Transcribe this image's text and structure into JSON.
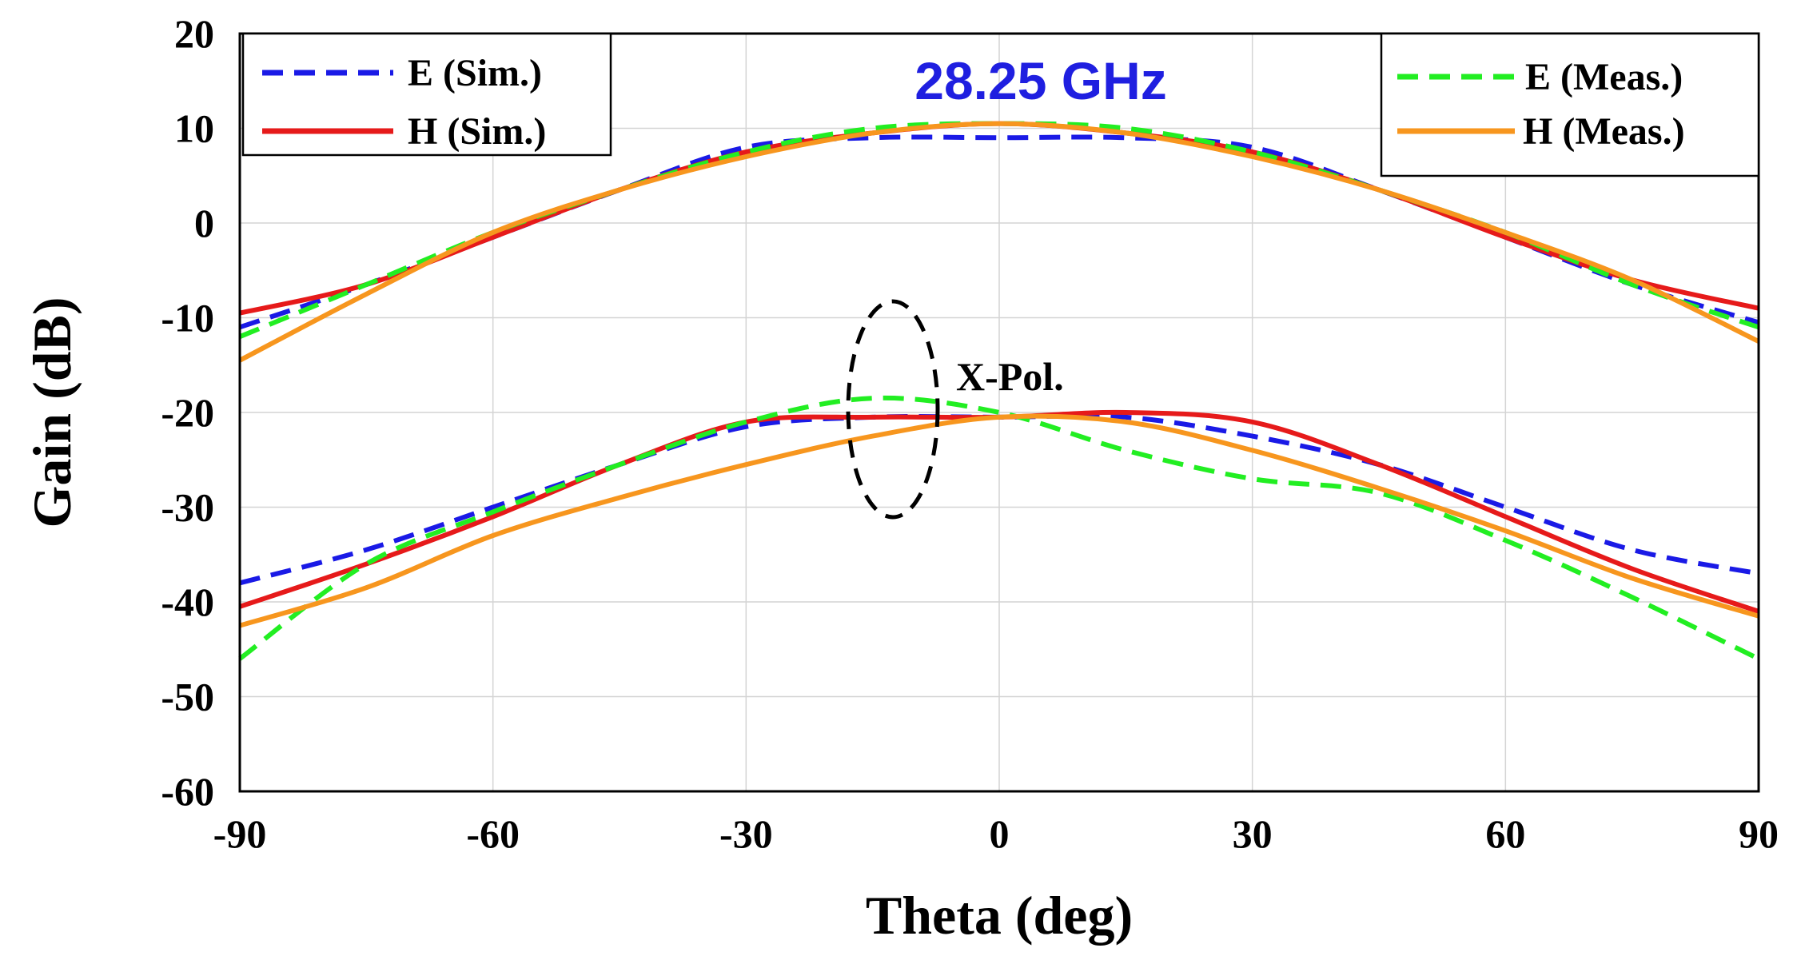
{
  "chart_data": {
    "type": "line",
    "title": "",
    "xlabel": "Theta (deg)",
    "ylabel": "Gain (dB)",
    "xlim": [
      -90,
      90
    ],
    "ylim": [
      -60,
      20
    ],
    "xticks": [
      -90,
      -60,
      -30,
      0,
      30,
      60,
      90
    ],
    "yticks": [
      -60,
      -50,
      -40,
      -30,
      -20,
      -10,
      0,
      10,
      20
    ],
    "xtick_labels": [
      "-90",
      "-60",
      "-30",
      "0",
      "30",
      "60",
      "90"
    ],
    "ytick_labels": [
      "-60",
      "-50",
      "-40",
      "-30",
      "-20",
      "-10",
      "0",
      "10",
      "20"
    ],
    "grid": true,
    "frequency_label": "28.25 GHz",
    "frequency_color": "#1f1fe0",
    "annotation": "X-Pol.",
    "legend_left": [
      "E (Sim.)",
      "H (Sim.)"
    ],
    "legend_right": [
      "E (Meas.)",
      "H (Meas.)"
    ],
    "x": [
      -90,
      -75,
      -60,
      -45,
      -30,
      -15,
      0,
      15,
      30,
      45,
      60,
      75,
      90
    ],
    "series": [
      {
        "name": "E (Sim.)",
        "group": "co-pol",
        "color": "#1a1ae6",
        "dash": "dashed",
        "values": [
          -11,
          -6.5,
          -1.5,
          3.5,
          8,
          9,
          9,
          9,
          8,
          3.5,
          -1.5,
          -6.5,
          -10.5
        ]
      },
      {
        "name": "H (Sim.)",
        "group": "co-pol",
        "color": "#e61a1a",
        "dash": "solid",
        "values": [
          -9.5,
          -6.5,
          -1.5,
          3.5,
          7.5,
          9.5,
          10.5,
          9.5,
          7.5,
          3.5,
          -1.5,
          -6,
          -9
        ]
      },
      {
        "name": "E (Meas.)",
        "group": "co-pol",
        "color": "#22ee22",
        "dash": "dashed",
        "values": [
          -12,
          -6.5,
          -1,
          3.5,
          7.5,
          10,
          10.5,
          10,
          7.5,
          3.5,
          -1,
          -6.5,
          -11
        ]
      },
      {
        "name": "H (Meas.)",
        "group": "co-pol",
        "color": "#f7961e",
        "dash": "solid",
        "values": [
          -14.5,
          -7.5,
          -1,
          3.5,
          7,
          9.5,
          10.5,
          9.5,
          7,
          3.5,
          -1,
          -6,
          -12.5
        ]
      },
      {
        "name": "E (Sim.)",
        "group": "x-pol",
        "color": "#1a1ae6",
        "dash": "dashed",
        "values": [
          -38,
          -34.5,
          -30,
          -25.5,
          -21.5,
          -20.5,
          -20.5,
          -20.5,
          -22.5,
          -25.5,
          -30,
          -34.5,
          -37
        ]
      },
      {
        "name": "H (Sim.)",
        "group": "x-pol",
        "color": "#e61a1a",
        "dash": "solid",
        "values": [
          -40.5,
          -36,
          -31,
          -25.5,
          -21,
          -20.5,
          -20.5,
          -20,
          -21,
          -25.5,
          -31,
          -36.5,
          -41
        ]
      },
      {
        "name": "E (Meas.)",
        "group": "x-pol",
        "color": "#22ee22",
        "dash": "dashed",
        "values": [
          -46,
          -36,
          -30.5,
          -25.5,
          -21,
          -18.5,
          -20,
          -24,
          -27,
          -28.5,
          -33.5,
          -39.5,
          -46
        ]
      },
      {
        "name": "H (Meas.)",
        "group": "x-pol",
        "color": "#f7961e",
        "dash": "solid",
        "values": [
          -42.5,
          -38.5,
          -33,
          -29,
          -25.5,
          -22.5,
          -20.5,
          -21,
          -24,
          -28,
          -32.5,
          -37.5,
          -41.5
        ]
      }
    ]
  }
}
